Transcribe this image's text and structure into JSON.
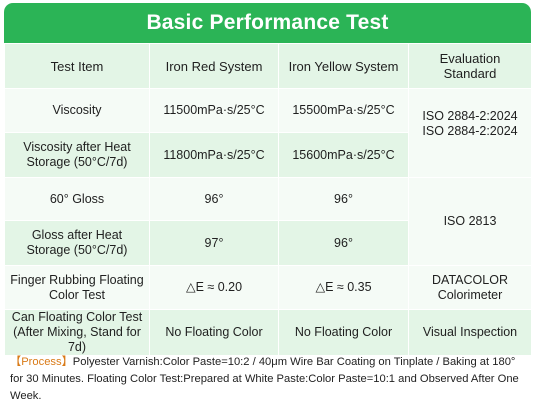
{
  "title": "Basic Performance Test",
  "columns": [
    "Test Item",
    "Iron Red System",
    "Iron Yellow System",
    "Evaluation Standard"
  ],
  "rows": [
    {
      "item": "Viscosity",
      "red": "11500mPa·s/25°C",
      "yellow": "15500mPa·s/25°C"
    },
    {
      "item": "Viscosity after Heat Storage (50°C/7d)",
      "red": "11800mPa·s/25°C",
      "yellow": "15600mPa·s/25°C"
    },
    {
      "item": "60° Gloss",
      "red": "96°",
      "yellow": "96°"
    },
    {
      "item": "Gloss after Heat Storage (50°C/7d)",
      "red": "97°",
      "yellow": "96°"
    },
    {
      "item": "Finger Rubbing Floating Color Test",
      "red": "△E ≈ 0.20",
      "yellow": "△E ≈ 0.35"
    },
    {
      "item": "Can Floating Color Test (After Mixing, Stand for 7d)",
      "red": "No Floating Color",
      "yellow": "No Floating Color"
    }
  ],
  "standards": {
    "viscosity_1": "ISO 2884-2:2024",
    "viscosity_2": "ISO 2884-2:2024",
    "gloss": "ISO 2813",
    "finger_1": "DATACOLOR",
    "finger_2": "Colorimeter",
    "can": "Visual Inspection"
  },
  "note": {
    "tag": "【Process】",
    "text": "Polyester Varnish:Color Paste=10:2 / 40μm Wire Bar Coating on Tinplate / Baking at 180° for 30 Minutes. Floating Color Test:Prepared at White Paste:Color Paste=10:1 and Observed After One Week."
  }
}
